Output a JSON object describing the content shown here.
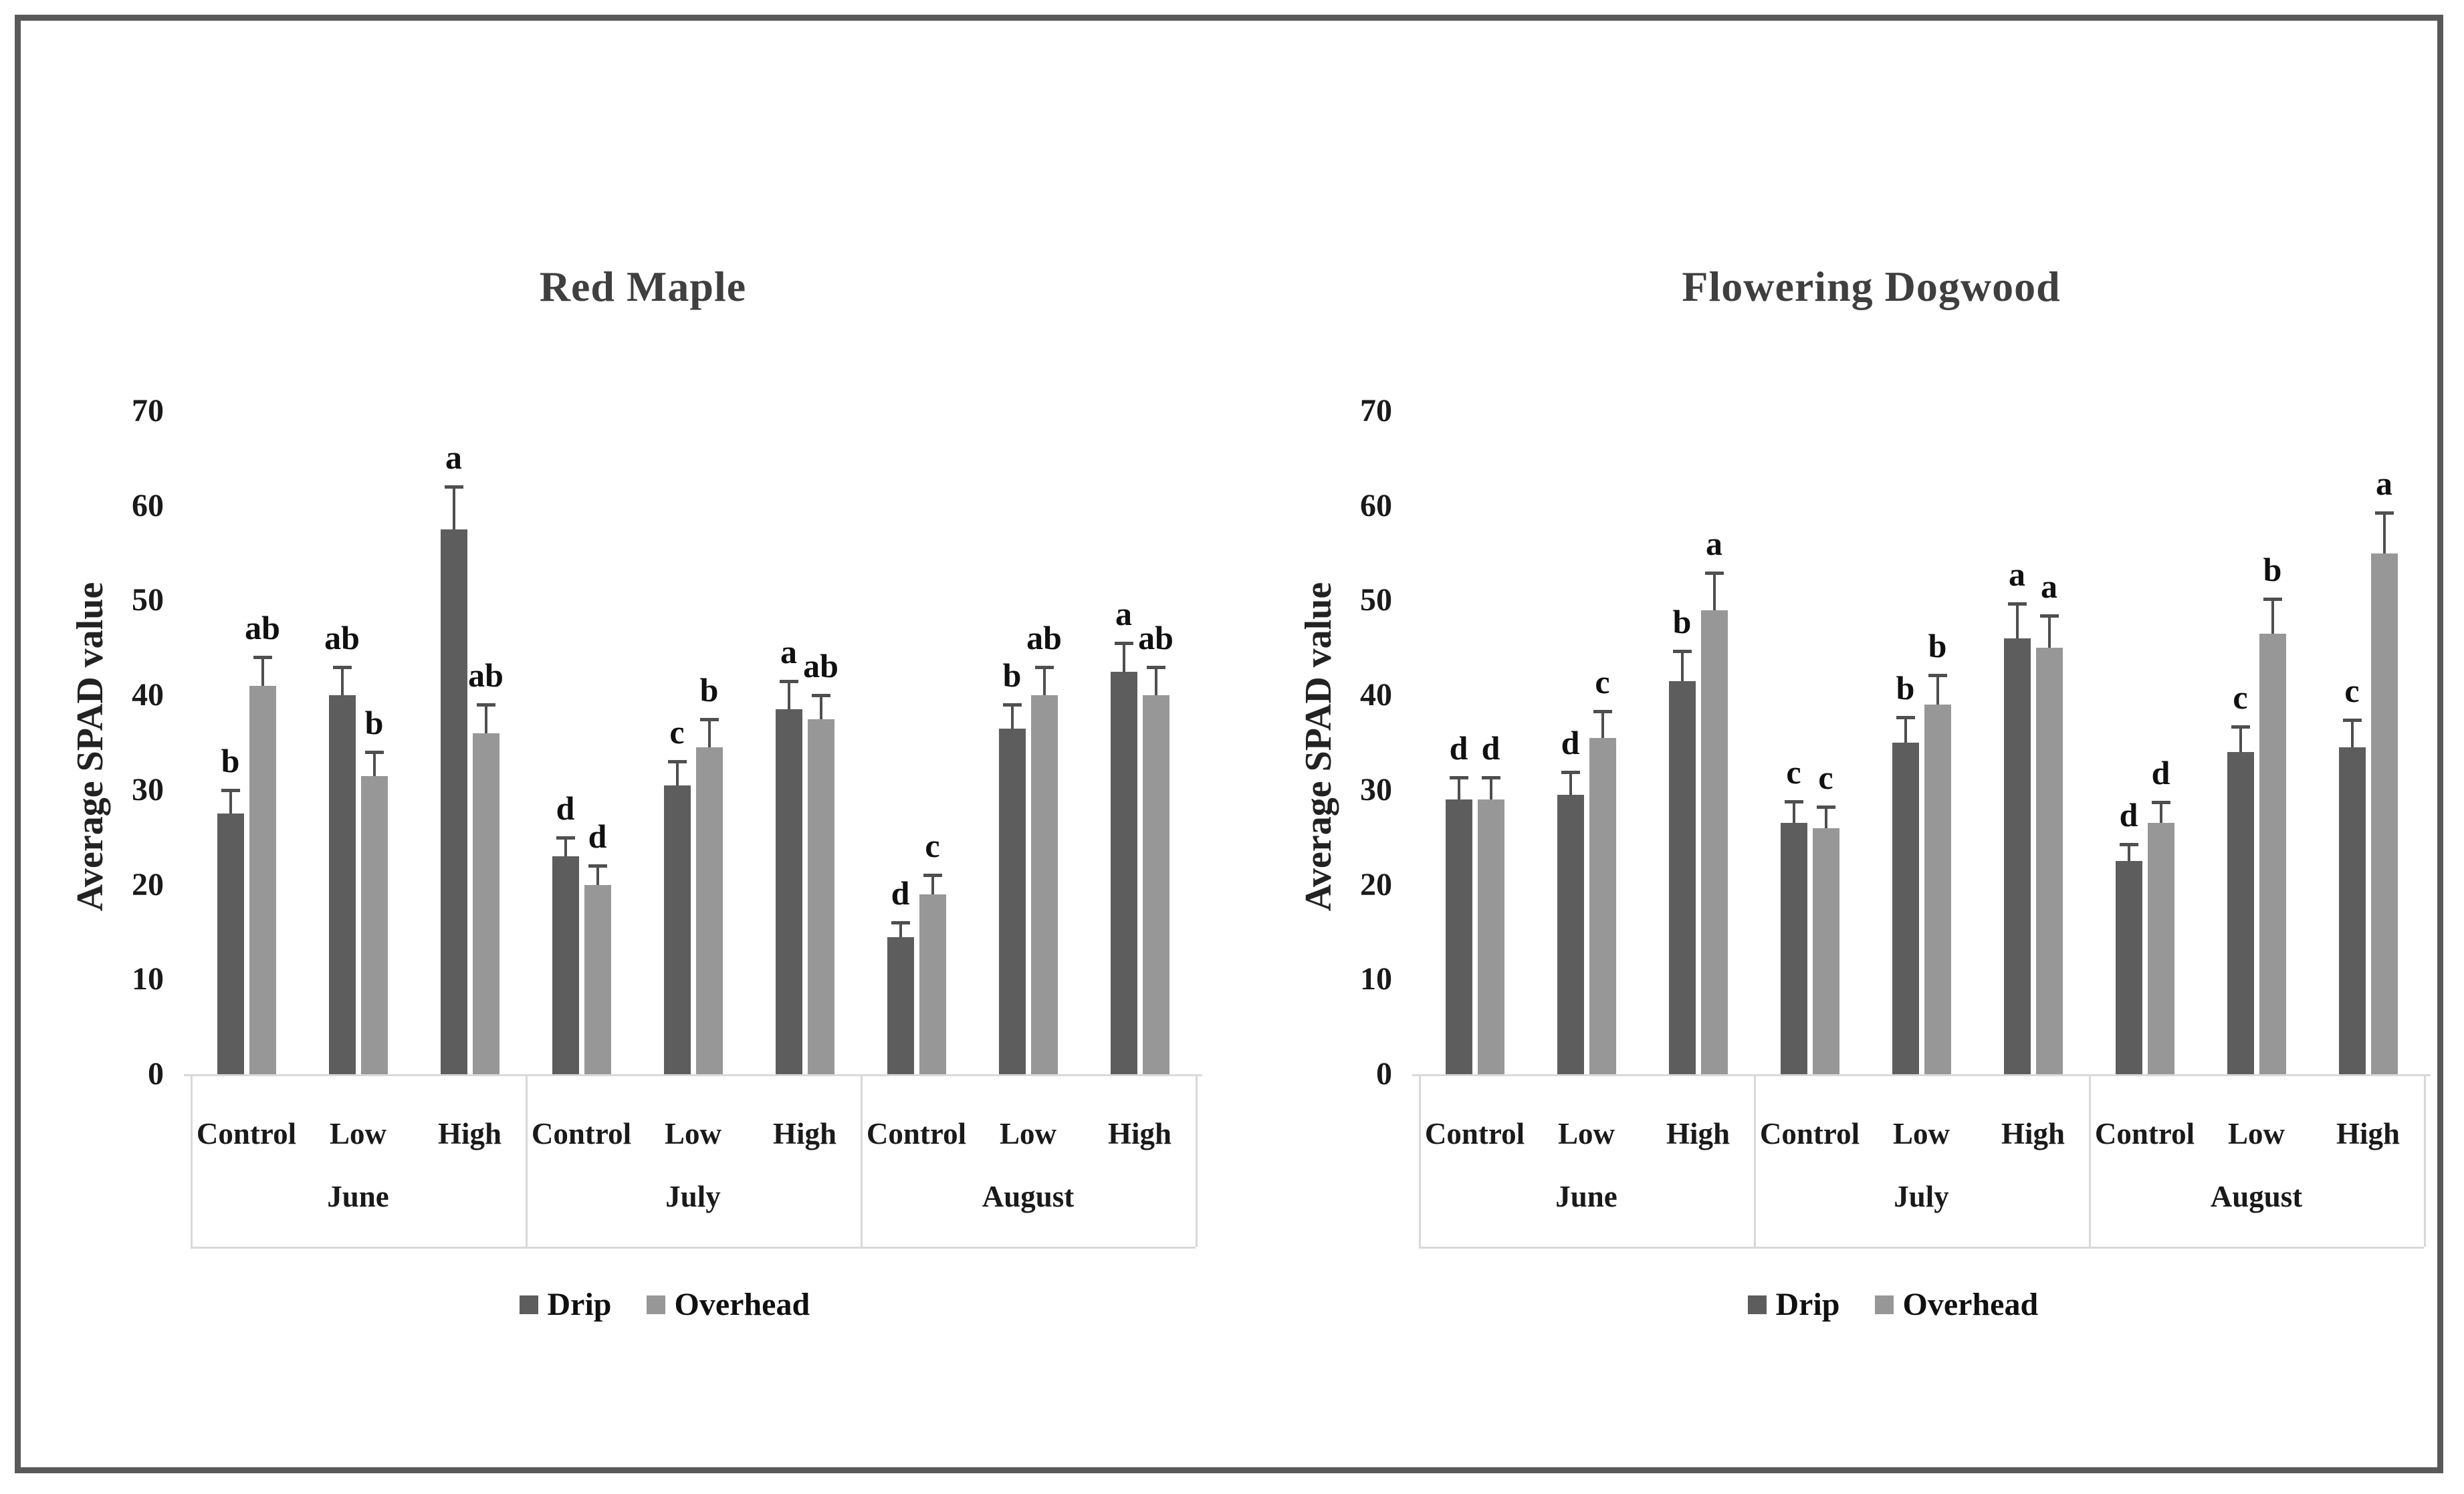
{
  "figure": {
    "border_color": "#595959",
    "background": "#ffffff"
  },
  "colors": {
    "drip": "#5d5d5d",
    "overhead": "#979797",
    "error_bar": "#4f4f4f",
    "axis_lines": "#d9d9d9",
    "text": "#1a1a1a",
    "title_text": "#3f3f3f"
  },
  "axis": {
    "ticks": [
      0,
      10,
      20,
      30,
      40,
      50,
      60,
      70
    ],
    "ymax": 70
  },
  "x_axis": {
    "treatments": [
      "Control",
      "Low",
      "High"
    ],
    "months": [
      "June",
      "July",
      "August"
    ]
  },
  "chart_data": [
    {
      "type": "bar",
      "title": "Red Maple",
      "ylabel": "Average SPAD value",
      "ylim": [
        0,
        70
      ],
      "grid": false,
      "legend_position": "bottom",
      "categories": [
        "June Control",
        "June Low",
        "June High",
        "July Control",
        "July Low",
        "July High",
        "August Control",
        "August Low",
        "August High"
      ],
      "series": [
        {
          "name": "Drip",
          "values": [
            27.5,
            40,
            57.5,
            23,
            30.5,
            38.5,
            14.5,
            36.5,
            42.5
          ],
          "errors": [
            2.5,
            3,
            4.5,
            2,
            2.5,
            3,
            1.5,
            2.5,
            3
          ],
          "letters": [
            "b",
            "ab",
            "a",
            "d",
            "c",
            "a",
            "d",
            "b",
            "a"
          ]
        },
        {
          "name": "Overhead",
          "values": [
            41,
            31.5,
            36,
            20,
            34.5,
            37.5,
            19,
            40,
            40
          ],
          "errors": [
            3,
            2.5,
            3,
            2,
            3,
            2.5,
            2,
            3,
            3
          ],
          "letters": [
            "ab",
            "b",
            "ab",
            "d",
            "b",
            "ab",
            "c",
            "ab",
            "ab"
          ]
        }
      ]
    },
    {
      "type": "bar",
      "title": "Flowering Dogwood",
      "ylabel": "Average SPAD value",
      "ylim": [
        0,
        70
      ],
      "grid": false,
      "legend_position": "bottom",
      "categories": [
        "June Control",
        "June Low",
        "June High",
        "July Control",
        "July Low",
        "July High",
        "August Control",
        "August Low",
        "August High"
      ],
      "series": [
        {
          "name": "Drip",
          "values": [
            29,
            29.5,
            41.5,
            26.5,
            35,
            46,
            22.5,
            34,
            34.5
          ],
          "errors": [
            2.3,
            2.4,
            3.2,
            2.3,
            2.7,
            3.7,
            1.8,
            2.7,
            2.9
          ],
          "letters": [
            "d",
            "d",
            "b",
            "c",
            "b",
            "a",
            "d",
            "c",
            "c"
          ]
        },
        {
          "name": "Overhead",
          "values": [
            29,
            35.5,
            49,
            26,
            39,
            45,
            26.5,
            46.5,
            55
          ],
          "errors": [
            2.3,
            2.8,
            3.9,
            2.2,
            3.1,
            3.4,
            2.2,
            3.7,
            4.3
          ],
          "letters": [
            "d",
            "c",
            "a",
            "c",
            "b",
            "a",
            "d",
            "b",
            "a"
          ]
        }
      ]
    }
  ]
}
